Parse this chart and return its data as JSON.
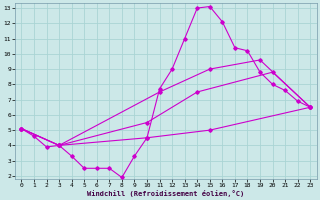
{
  "xlabel": "Windchill (Refroidissement éolien,°C)",
  "ylabel": "",
  "xlim": [
    -0.5,
    23.5
  ],
  "ylim": [
    1.8,
    13.3
  ],
  "xticks": [
    0,
    1,
    2,
    3,
    4,
    5,
    6,
    7,
    8,
    9,
    10,
    11,
    12,
    13,
    14,
    15,
    16,
    17,
    18,
    19,
    20,
    21,
    22,
    23
  ],
  "yticks": [
    2,
    3,
    4,
    5,
    6,
    7,
    8,
    9,
    10,
    11,
    12,
    13
  ],
  "background_color": "#cce8e8",
  "grid_color": "#aad4d4",
  "line_color": "#cc00cc",
  "lines": [
    {
      "x": [
        0,
        1,
        2,
        3,
        4,
        5,
        6,
        7,
        8,
        9,
        10,
        11,
        12,
        13,
        14,
        15,
        16,
        17,
        18,
        19,
        20,
        21,
        22,
        23
      ],
      "y": [
        5.1,
        4.6,
        3.9,
        4.0,
        3.3,
        2.5,
        2.5,
        2.5,
        1.9,
        3.3,
        4.5,
        7.7,
        9.0,
        11.0,
        13.0,
        13.1,
        12.1,
        10.4,
        10.2,
        8.8,
        8.0,
        7.6,
        6.9,
        6.5
      ]
    },
    {
      "x": [
        0,
        3,
        10,
        15,
        23
      ],
      "y": [
        5.1,
        4.0,
        4.5,
        5.0,
        6.5
      ]
    },
    {
      "x": [
        0,
        3,
        10,
        14,
        20,
        23
      ],
      "y": [
        5.1,
        4.0,
        5.5,
        7.5,
        8.8,
        6.5
      ]
    },
    {
      "x": [
        0,
        3,
        11,
        15,
        19,
        23
      ],
      "y": [
        5.1,
        4.0,
        7.5,
        9.0,
        9.6,
        6.5
      ]
    }
  ]
}
